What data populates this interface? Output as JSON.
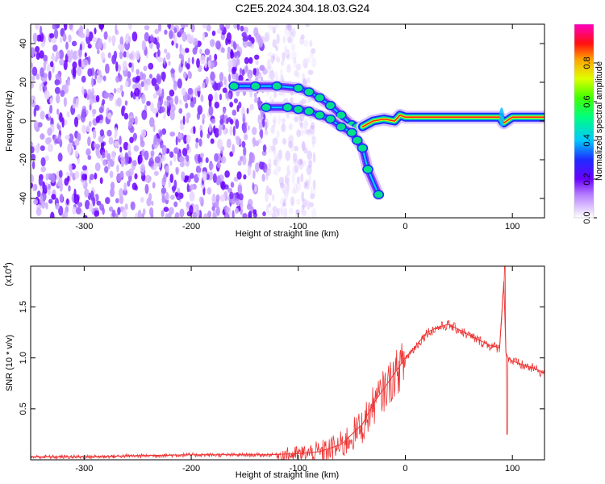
{
  "title": "C2E5.2024.304.18.03.G24",
  "chart_data": [
    {
      "type": "heatmap",
      "xlabel": "Height of straight line (km)",
      "ylabel": "Frequency (Hz)",
      "xlim": [
        -350,
        130
      ],
      "ylim": [
        -50,
        50
      ],
      "x_ticks": [
        -300,
        -200,
        -100,
        0,
        100
      ],
      "y_ticks": [
        -40,
        -20,
        0,
        20,
        40
      ],
      "colorbar": {
        "label": "Normalized spectral amplitude",
        "range": [
          0,
          1
        ],
        "ticks": [
          0.0,
          0.2,
          0.4,
          0.6,
          0.8
        ],
        "tick_labels": [
          "0.0",
          "0.2",
          "0.4",
          "0.6",
          "0.8"
        ]
      },
      "noise_region": {
        "x_from": -350,
        "x_to": -110
      },
      "traces": [
        {
          "points": [
            [
              -160,
              18
            ],
            [
              -140,
              18
            ],
            [
              -120,
              18
            ],
            [
              -100,
              17
            ],
            [
              -90,
              15
            ],
            [
              -80,
              12
            ],
            [
              -70,
              8
            ],
            [
              -60,
              3
            ],
            [
              -50,
              -2
            ],
            [
              -45,
              -3
            ],
            [
              -40,
              -3
            ]
          ]
        },
        {
          "points": [
            [
              -130,
              7
            ],
            [
              -110,
              7
            ],
            [
              -100,
              6
            ],
            [
              -90,
              5
            ],
            [
              -80,
              3
            ],
            [
              -70,
              1
            ],
            [
              -60,
              -3
            ],
            [
              -50,
              -6
            ],
            [
              -45,
              -10
            ],
            [
              -40,
              -14
            ],
            [
              -35,
              -25
            ],
            [
              -25,
              -38
            ]
          ]
        },
        {
          "points": [
            [
              -40,
              -3
            ],
            [
              -30,
              0
            ],
            [
              -20,
              1
            ],
            [
              -10,
              0
            ],
            [
              -5,
              3
            ],
            [
              0,
              2
            ],
            [
              20,
              2
            ],
            [
              50,
              2
            ],
            [
              80,
              2
            ],
            [
              88,
              2
            ],
            [
              92,
              -1
            ],
            [
              100,
              2
            ],
            [
              130,
              2
            ]
          ]
        }
      ]
    },
    {
      "type": "line",
      "xlabel": "Height of straight line (km)",
      "ylabel": "SNR (10 * v/v)",
      "y_multiplier": "(x10",
      "y_multiplier_exp": "4",
      "xlim": [
        -350,
        130
      ],
      "ylim": [
        0,
        1.9
      ],
      "x_ticks": [
        -300,
        -200,
        -100,
        0,
        100
      ],
      "y_ticks": [
        0.5,
        1.0,
        1.5
      ],
      "y_tick_labels": [
        "0.5",
        "1.0",
        "1.5"
      ],
      "color": "#ee3333",
      "series": [
        {
          "x": [
            -350,
            -300,
            -250,
            -200,
            -160,
            -130,
            -100,
            -80,
            -60,
            -50,
            -40,
            -30,
            -20,
            -10,
            0,
            10,
            20,
            30,
            40,
            50,
            60,
            70,
            80,
            88,
            92,
            94,
            96,
            100,
            110,
            120,
            130
          ],
          "y": [
            0.03,
            0.03,
            0.04,
            0.05,
            0.05,
            0.05,
            0.06,
            0.08,
            0.15,
            0.25,
            0.35,
            0.55,
            0.7,
            0.85,
            1.0,
            1.12,
            1.25,
            1.3,
            1.33,
            1.28,
            1.22,
            1.17,
            1.12,
            1.1,
            1.75,
            1.05,
            1.0,
            0.97,
            0.93,
            0.9,
            0.85
          ]
        }
      ]
    }
  ]
}
